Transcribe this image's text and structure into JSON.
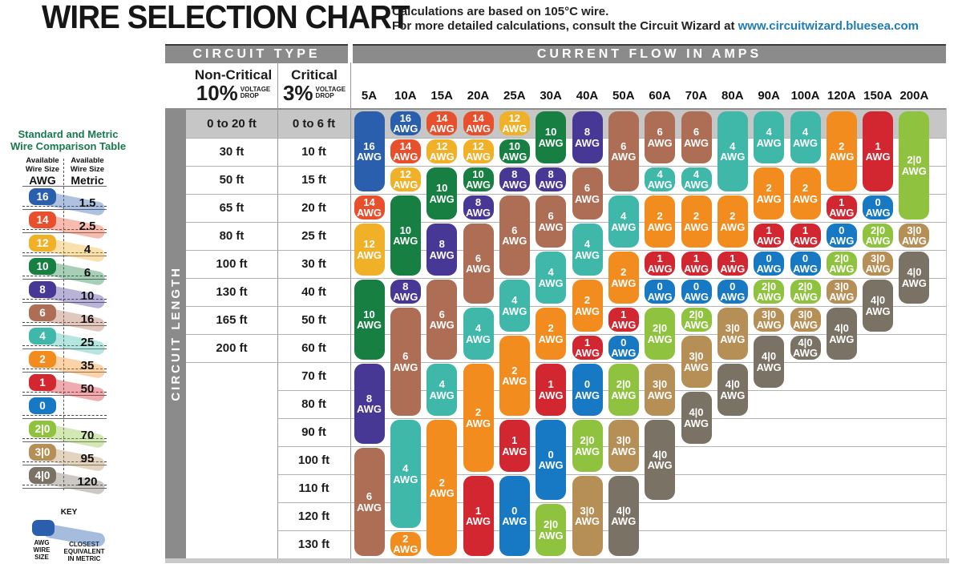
{
  "header": {
    "title": "WIRE SELECTION CHART",
    "subtitle_line1": "Calculations are based on 105°C wire.",
    "subtitle_line2_prefix": "For more detailed calculations, consult the Circuit Wizard at ",
    "subtitle_link": "www.circuitwizard.bluesea.com"
  },
  "comparison": {
    "title_line1": "Standard and Metric",
    "title_line2": "Wire Comparison Table",
    "col_awg_header": [
      "Available",
      "Wire Size"
    ],
    "col_awg_unit": "AWG",
    "col_metric_header": [
      "Available",
      "Wire Size"
    ],
    "col_metric_unit": "Metric",
    "rows": [
      {
        "awg": "16",
        "metric": "1.5"
      },
      {
        "awg": "14",
        "metric": "2.5"
      },
      {
        "awg": "12",
        "metric": "4"
      },
      {
        "awg": "10",
        "metric": "6"
      },
      {
        "awg": "8",
        "metric": "10"
      },
      {
        "awg": "6",
        "metric": "16"
      },
      {
        "awg": "4",
        "metric": "25"
      },
      {
        "awg": "2",
        "metric": "35"
      },
      {
        "awg": "1",
        "metric": "50"
      },
      {
        "awg": "0",
        "metric": ""
      },
      {
        "awg": "2|0",
        "metric": "70"
      },
      {
        "awg": "3|0",
        "metric": "95"
      },
      {
        "awg": "4|0",
        "metric": "120"
      }
    ],
    "key": {
      "label": "KEY",
      "left_caption": [
        "AWG",
        "WIRE",
        "SIZE"
      ],
      "right_caption": [
        "CLOSEST",
        "EQUIVALENT",
        "IN METRIC"
      ]
    }
  },
  "table": {
    "circuit_type_label": "CIRCUIT TYPE",
    "current_flow_label": "CURRENT FLOW IN AMPS",
    "circuit_length_label": "CIRCUIT LENGTH",
    "non_critical": {
      "name": "Non-Critical",
      "pct": "10%",
      "drop_line1": "VOLTAGE",
      "drop_line2": "DROP"
    },
    "critical": {
      "name": "Critical",
      "pct": "3%",
      "drop_line1": "VOLTAGE",
      "drop_line2": "DROP"
    },
    "awg_suffix": "AWG"
  },
  "chart_data": {
    "type": "table",
    "title": "WIRE SELECTION CHART",
    "x_axis_label": "CURRENT FLOW IN AMPS",
    "y_axis_label": "CIRCUIT LENGTH",
    "amps": [
      "5A",
      "10A",
      "15A",
      "20A",
      "25A",
      "30A",
      "40A",
      "50A",
      "60A",
      "70A",
      "80A",
      "90A",
      "100A",
      "120A",
      "150A",
      "200A"
    ],
    "length_rows": [
      {
        "non_critical_10pct": "0 to 20 ft",
        "critical_3pct": "0 to 6 ft"
      },
      {
        "non_critical_10pct": "30 ft",
        "critical_3pct": "10 ft"
      },
      {
        "non_critical_10pct": "50 ft",
        "critical_3pct": "15 ft"
      },
      {
        "non_critical_10pct": "65 ft",
        "critical_3pct": "20 ft"
      },
      {
        "non_critical_10pct": "80 ft",
        "critical_3pct": "25 ft"
      },
      {
        "non_critical_10pct": "100 ft",
        "critical_3pct": "30 ft"
      },
      {
        "non_critical_10pct": "130 ft",
        "critical_3pct": "40 ft"
      },
      {
        "non_critical_10pct": "165 ft",
        "critical_3pct": "50 ft"
      },
      {
        "non_critical_10pct": "200 ft",
        "critical_3pct": "60 ft"
      },
      {
        "non_critical_10pct": "",
        "critical_3pct": "70 ft"
      },
      {
        "non_critical_10pct": "",
        "critical_3pct": "80 ft"
      },
      {
        "non_critical_10pct": "",
        "critical_3pct": "90 ft"
      },
      {
        "non_critical_10pct": "",
        "critical_3pct": "100 ft"
      },
      {
        "non_critical_10pct": "",
        "critical_3pct": "110 ft"
      },
      {
        "non_critical_10pct": "",
        "critical_3pct": "120 ft"
      },
      {
        "non_critical_10pct": "",
        "critical_3pct": "130 ft"
      }
    ],
    "wire_segments_by_amp": [
      {
        "amp": "5A",
        "segments": [
          {
            "awg": "16",
            "rows": [
              1,
              3
            ]
          },
          {
            "awg": "14",
            "rows": [
              4,
              4
            ]
          },
          {
            "awg": "12",
            "rows": [
              5,
              6
            ]
          },
          {
            "awg": "10",
            "rows": [
              7,
              9
            ]
          },
          {
            "awg": "8",
            "rows": [
              10,
              12
            ]
          },
          {
            "awg": "6",
            "rows": [
              13,
              16
            ]
          }
        ]
      },
      {
        "amp": "10A",
        "segments": [
          {
            "awg": "16",
            "rows": [
              1,
              1
            ]
          },
          {
            "awg": "14",
            "rows": [
              2,
              2
            ]
          },
          {
            "awg": "12",
            "rows": [
              3,
              3
            ]
          },
          {
            "awg": "10",
            "rows": [
              4,
              6
            ]
          },
          {
            "awg": "8",
            "rows": [
              7,
              7
            ]
          },
          {
            "awg": "6",
            "rows": [
              8,
              11
            ]
          },
          {
            "awg": "4",
            "rows": [
              12,
              15
            ]
          },
          {
            "awg": "2",
            "rows": [
              16,
              16
            ]
          }
        ]
      },
      {
        "amp": "15A",
        "segments": [
          {
            "awg": "14",
            "rows": [
              1,
              1
            ]
          },
          {
            "awg": "12",
            "rows": [
              2,
              2
            ]
          },
          {
            "awg": "10",
            "rows": [
              3,
              4
            ]
          },
          {
            "awg": "8",
            "rows": [
              5,
              6
            ]
          },
          {
            "awg": "6",
            "rows": [
              7,
              9
            ]
          },
          {
            "awg": "4",
            "rows": [
              10,
              11
            ]
          },
          {
            "awg": "2",
            "rows": [
              12,
              16
            ]
          }
        ]
      },
      {
        "amp": "20A",
        "segments": [
          {
            "awg": "14",
            "rows": [
              1,
              1
            ]
          },
          {
            "awg": "12",
            "rows": [
              2,
              2
            ]
          },
          {
            "awg": "10",
            "rows": [
              3,
              3
            ]
          },
          {
            "awg": "8",
            "rows": [
              4,
              4
            ]
          },
          {
            "awg": "6",
            "rows": [
              5,
              7
            ]
          },
          {
            "awg": "4",
            "rows": [
              8,
              9
            ]
          },
          {
            "awg": "2",
            "rows": [
              10,
              13
            ]
          },
          {
            "awg": "1",
            "rows": [
              14,
              16
            ]
          }
        ]
      },
      {
        "amp": "25A",
        "segments": [
          {
            "awg": "12",
            "rows": [
              1,
              1
            ]
          },
          {
            "awg": "10",
            "rows": [
              2,
              2
            ]
          },
          {
            "awg": "8",
            "rows": [
              3,
              3
            ]
          },
          {
            "awg": "6",
            "rows": [
              4,
              6
            ]
          },
          {
            "awg": "4",
            "rows": [
              7,
              8
            ]
          },
          {
            "awg": "2",
            "rows": [
              9,
              11
            ]
          },
          {
            "awg": "1",
            "rows": [
              12,
              13
            ]
          },
          {
            "awg": "0",
            "rows": [
              14,
              16
            ]
          }
        ]
      },
      {
        "amp": "30A",
        "segments": [
          {
            "awg": "10",
            "rows": [
              1,
              2
            ]
          },
          {
            "awg": "8",
            "rows": [
              3,
              3
            ]
          },
          {
            "awg": "6",
            "rows": [
              4,
              5
            ]
          },
          {
            "awg": "4",
            "rows": [
              6,
              7
            ]
          },
          {
            "awg": "2",
            "rows": [
              8,
              9
            ]
          },
          {
            "awg": "1",
            "rows": [
              10,
              11
            ]
          },
          {
            "awg": "0",
            "rows": [
              12,
              14
            ]
          },
          {
            "awg": "2|0",
            "rows": [
              15,
              16
            ]
          }
        ]
      },
      {
        "amp": "40A",
        "segments": [
          {
            "awg": "8",
            "rows": [
              1,
              2
            ]
          },
          {
            "awg": "6",
            "rows": [
              3,
              4
            ]
          },
          {
            "awg": "4",
            "rows": [
              5,
              6
            ]
          },
          {
            "awg": "2",
            "rows": [
              7,
              8
            ]
          },
          {
            "awg": "1",
            "rows": [
              9,
              9
            ]
          },
          {
            "awg": "0",
            "rows": [
              10,
              11
            ]
          },
          {
            "awg": "2|0",
            "rows": [
              12,
              13
            ]
          },
          {
            "awg": "3|0",
            "rows": [
              14,
              16
            ]
          }
        ]
      },
      {
        "amp": "50A",
        "segments": [
          {
            "awg": "6",
            "rows": [
              1,
              3
            ]
          },
          {
            "awg": "4",
            "rows": [
              4,
              5
            ]
          },
          {
            "awg": "2",
            "rows": [
              6,
              7
            ]
          },
          {
            "awg": "1",
            "rows": [
              8,
              8
            ]
          },
          {
            "awg": "0",
            "rows": [
              9,
              9
            ]
          },
          {
            "awg": "2|0",
            "rows": [
              10,
              11
            ]
          },
          {
            "awg": "3|0",
            "rows": [
              12,
              13
            ]
          },
          {
            "awg": "4|0",
            "rows": [
              14,
              16
            ]
          }
        ]
      },
      {
        "amp": "60A",
        "segments": [
          {
            "awg": "6",
            "rows": [
              1,
              2
            ]
          },
          {
            "awg": "4",
            "rows": [
              3,
              3
            ]
          },
          {
            "awg": "2",
            "rows": [
              4,
              5
            ]
          },
          {
            "awg": "1",
            "rows": [
              6,
              6
            ]
          },
          {
            "awg": "0",
            "rows": [
              7,
              7
            ]
          },
          {
            "awg": "2|0",
            "rows": [
              8,
              9
            ]
          },
          {
            "awg": "3|0",
            "rows": [
              10,
              11
            ]
          },
          {
            "awg": "4|0",
            "rows": [
              12,
              14
            ]
          }
        ]
      },
      {
        "amp": "70A",
        "segments": [
          {
            "awg": "6",
            "rows": [
              1,
              2
            ]
          },
          {
            "awg": "4",
            "rows": [
              3,
              3
            ]
          },
          {
            "awg": "2",
            "rows": [
              4,
              5
            ]
          },
          {
            "awg": "1",
            "rows": [
              6,
              6
            ]
          },
          {
            "awg": "0",
            "rows": [
              7,
              7
            ]
          },
          {
            "awg": "2|0",
            "rows": [
              8,
              8
            ]
          },
          {
            "awg": "3|0",
            "rows": [
              9,
              10
            ]
          },
          {
            "awg": "4|0",
            "rows": [
              11,
              12
            ]
          }
        ]
      },
      {
        "amp": "80A",
        "segments": [
          {
            "awg": "4",
            "rows": [
              1,
              3
            ]
          },
          {
            "awg": "2",
            "rows": [
              4,
              5
            ]
          },
          {
            "awg": "1",
            "rows": [
              6,
              6
            ]
          },
          {
            "awg": "0",
            "rows": [
              7,
              7
            ]
          },
          {
            "awg": "3|0",
            "rows": [
              8,
              9
            ]
          },
          {
            "awg": "4|0",
            "rows": [
              10,
              11
            ]
          }
        ]
      },
      {
        "amp": "90A",
        "segments": [
          {
            "awg": "4",
            "rows": [
              1,
              2
            ]
          },
          {
            "awg": "2",
            "rows": [
              3,
              4
            ]
          },
          {
            "awg": "1",
            "rows": [
              5,
              5
            ]
          },
          {
            "awg": "0",
            "rows": [
              6,
              6
            ]
          },
          {
            "awg": "2|0",
            "rows": [
              7,
              7
            ]
          },
          {
            "awg": "3|0",
            "rows": [
              8,
              8
            ]
          },
          {
            "awg": "4|0",
            "rows": [
              9,
              10
            ]
          }
        ]
      },
      {
        "amp": "100A",
        "segments": [
          {
            "awg": "4",
            "rows": [
              1,
              2
            ]
          },
          {
            "awg": "2",
            "rows": [
              3,
              4
            ]
          },
          {
            "awg": "1",
            "rows": [
              5,
              5
            ]
          },
          {
            "awg": "0",
            "rows": [
              6,
              6
            ]
          },
          {
            "awg": "2|0",
            "rows": [
              7,
              7
            ]
          },
          {
            "awg": "3|0",
            "rows": [
              8,
              8
            ]
          },
          {
            "awg": "4|0",
            "rows": [
              9,
              9
            ]
          }
        ]
      },
      {
        "amp": "120A",
        "segments": [
          {
            "awg": "2",
            "rows": [
              1,
              3
            ]
          },
          {
            "awg": "1",
            "rows": [
              4,
              4
            ]
          },
          {
            "awg": "0",
            "rows": [
              5,
              5
            ]
          },
          {
            "awg": "2|0",
            "rows": [
              6,
              6
            ]
          },
          {
            "awg": "3|0",
            "rows": [
              7,
              7
            ]
          },
          {
            "awg": "4|0",
            "rows": [
              8,
              9
            ]
          }
        ]
      },
      {
        "amp": "150A",
        "segments": [
          {
            "awg": "1",
            "rows": [
              1,
              3
            ]
          },
          {
            "awg": "0",
            "rows": [
              4,
              4
            ]
          },
          {
            "awg": "2|0",
            "rows": [
              5,
              5
            ]
          },
          {
            "awg": "3|0",
            "rows": [
              6,
              6
            ]
          },
          {
            "awg": "4|0",
            "rows": [
              7,
              8
            ]
          }
        ]
      },
      {
        "amp": "200A",
        "segments": [
          {
            "awg": "2|0",
            "rows": [
              1,
              4
            ]
          },
          {
            "awg": "3|0",
            "rows": [
              5,
              5
            ]
          },
          {
            "awg": "4|0",
            "rows": [
              6,
              7
            ]
          }
        ]
      }
    ]
  },
  "colors": {
    "wire": {
      "16": "#2a5fad",
      "14": "#e8502d",
      "12": "#f0b028",
      "10": "#187f42",
      "8": "#473896",
      "6": "#ae6e55",
      "4": "#3fb8aa",
      "2": "#f28c1e",
      "1": "#d22630",
      "0": "#1779c4",
      "2|0": "#8fc33f",
      "3|0": "#b68f57",
      "4|0": "#7a7264"
    },
    "header_gray": "#8b8b8b",
    "row1_gray": "#c6c6c6",
    "grid_line": "#b3b3b3",
    "comparison_green": "#177a4a",
    "link_blue": "#1e7cba"
  }
}
